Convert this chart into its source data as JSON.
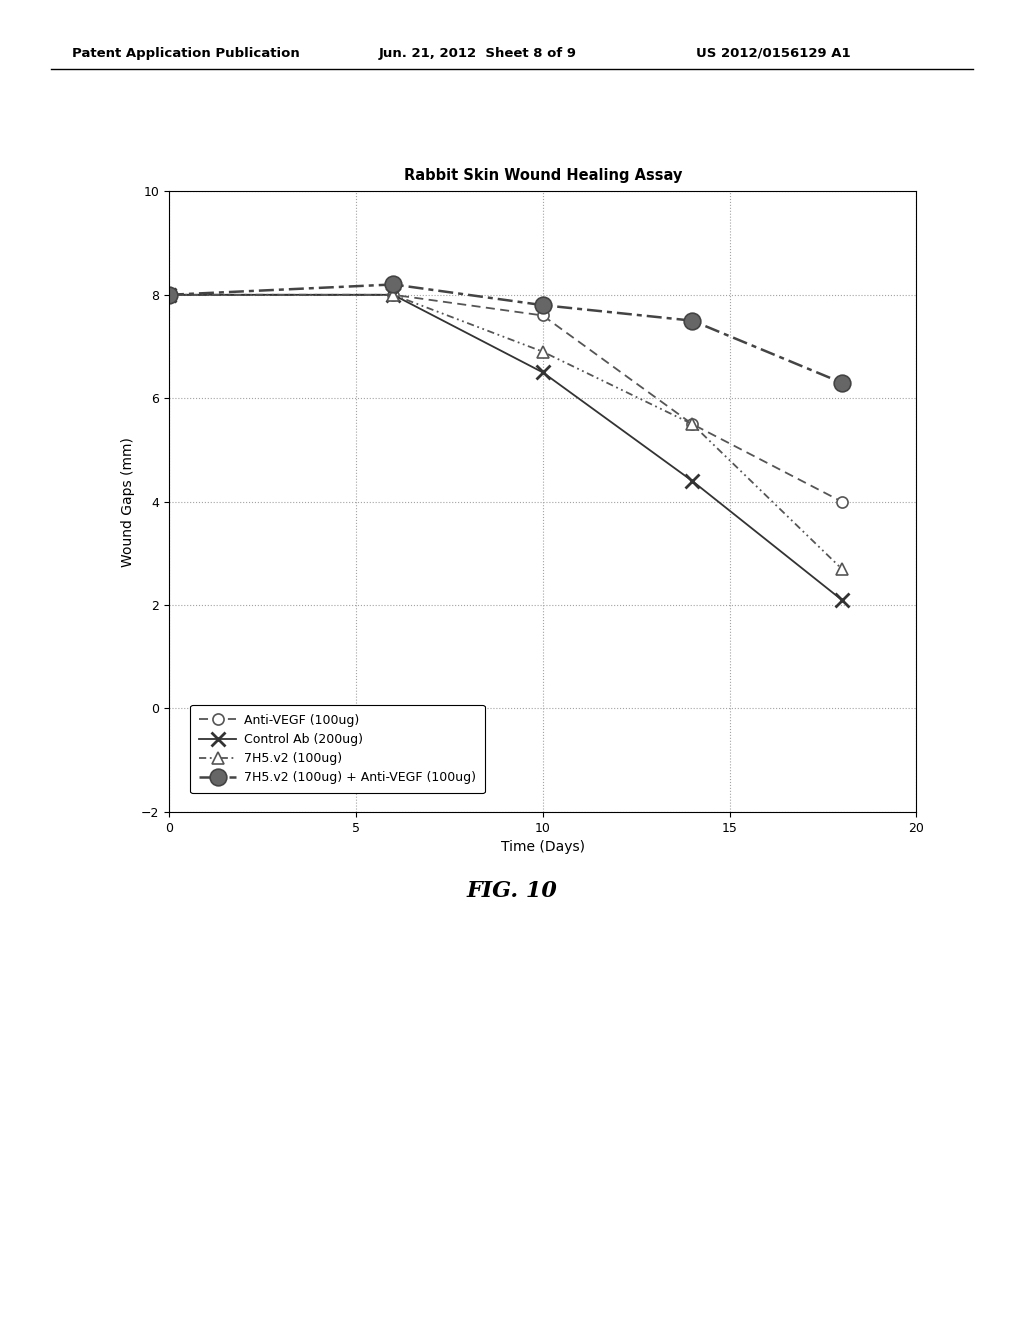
{
  "title": "Rabbit Skin Wound Healing Assay",
  "xlabel": "Time (Days)",
  "ylabel": "Wound Gaps (mm)",
  "xlim": [
    0,
    20
  ],
  "ylim": [
    -2,
    10
  ],
  "xticks": [
    0,
    5,
    10,
    15,
    20
  ],
  "yticks": [
    -2,
    0,
    2,
    4,
    6,
    8,
    10
  ],
  "series": [
    {
      "label": "Anti-VEGF (100ug)",
      "x": [
        0,
        6,
        10,
        14,
        18
      ],
      "y": [
        8.0,
        8.0,
        7.6,
        5.5,
        4.0
      ],
      "color": "#555555",
      "linestyle": "dashed",
      "marker": "o",
      "markerfacecolor": "white",
      "markersize": 8,
      "linewidth": 1.3
    },
    {
      "label": "Control Ab (200ug)",
      "x": [
        0,
        6,
        10,
        14,
        18
      ],
      "y": [
        8.0,
        8.0,
        6.5,
        4.4,
        2.1
      ],
      "color": "#333333",
      "linestyle": "solid",
      "marker": "x",
      "markerfacecolor": "#333333",
      "markersize": 10,
      "linewidth": 1.3
    },
    {
      "label": "7H5.v2 (100ug)",
      "x": [
        0,
        6,
        10,
        14,
        18
      ],
      "y": [
        8.0,
        8.0,
        6.9,
        5.5,
        2.7
      ],
      "color": "#555555",
      "linestyle": "dashdot",
      "marker": "^",
      "markerfacecolor": "white",
      "markersize": 9,
      "linewidth": 1.3
    },
    {
      "label": "7H5.v2 (100ug) + Anti-VEGF (100ug)",
      "x": [
        0,
        6,
        10,
        14,
        18
      ],
      "y": [
        8.0,
        8.2,
        7.8,
        7.5,
        6.3
      ],
      "color": "#444444",
      "linestyle": "dashdotdot",
      "marker": "o",
      "markerfacecolor": "#666666",
      "markersize": 12,
      "linewidth": 1.8
    }
  ],
  "fig_caption": "FIG. 10",
  "header_left": "Patent Application Publication",
  "header_center": "Jun. 21, 2012  Sheet 8 of 9",
  "header_right": "US 2012/0156129 A1",
  "background_color": "#ffffff",
  "grid_color": "#999999",
  "title_fontsize": 10.5,
  "label_fontsize": 10,
  "tick_fontsize": 9,
  "legend_fontsize": 9
}
